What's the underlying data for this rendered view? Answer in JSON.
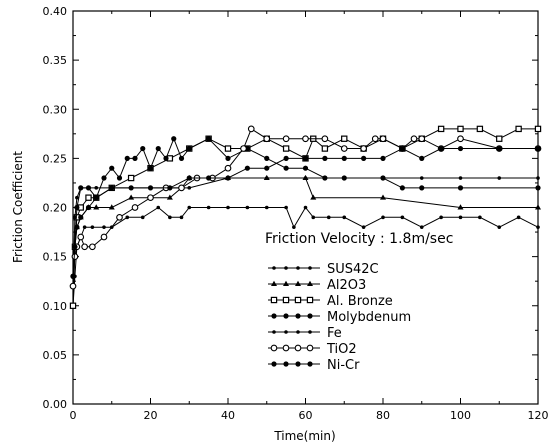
{
  "chart_data": {
    "type": "line",
    "title": "",
    "xlabel": "Time(min)",
    "ylabel": "Friction Coefficient",
    "xlim": [
      0,
      120
    ],
    "ylim": [
      0,
      0.4
    ],
    "x_ticks": [
      "0",
      "20",
      "40",
      "60",
      "80",
      "100",
      "120"
    ],
    "y_ticks": [
      "0.00",
      "0.05",
      "0.10",
      "0.15",
      "0.20",
      "0.25",
      "0.30",
      "0.35",
      "0.40"
    ],
    "grid": false,
    "legend_position": "lower-right",
    "annotation": "Friction Velocity : 1.8m/sec",
    "series": [
      {
        "name": "SUS42C",
        "marker": "small-dot",
        "x": [
          0,
          0.5,
          1,
          2,
          3,
          5,
          8,
          10,
          14,
          18,
          22,
          25,
          28,
          30,
          35,
          40,
          45,
          50,
          55,
          57,
          60,
          62,
          66,
          70,
          75,
          80,
          85,
          90,
          95,
          100,
          105,
          110,
          115,
          120
        ],
        "y": [
          0.1,
          0.13,
          0.16,
          0.17,
          0.18,
          0.18,
          0.18,
          0.18,
          0.19,
          0.19,
          0.2,
          0.19,
          0.19,
          0.2,
          0.2,
          0.2,
          0.2,
          0.2,
          0.2,
          0.18,
          0.2,
          0.19,
          0.19,
          0.19,
          0.18,
          0.19,
          0.19,
          0.18,
          0.19,
          0.19,
          0.19,
          0.18,
          0.19,
          0.18
        ]
      },
      {
        "name": "Al2O3",
        "marker": "triangle",
        "x": [
          0,
          0.5,
          1,
          2,
          4,
          6,
          10,
          15,
          20,
          25,
          28,
          30,
          40,
          50,
          60,
          62,
          80,
          100,
          120
        ],
        "y": [
          0.1,
          0.16,
          0.18,
          0.19,
          0.2,
          0.2,
          0.2,
          0.21,
          0.21,
          0.21,
          0.22,
          0.23,
          0.23,
          0.23,
          0.23,
          0.21,
          0.21,
          0.2,
          0.2
        ]
      },
      {
        "name": "Al. Bronze",
        "marker": "square",
        "x": [
          0,
          0.5,
          1,
          2,
          4,
          6,
          10,
          15,
          20,
          25,
          30,
          35,
          40,
          45,
          50,
          55,
          60,
          62,
          65,
          70,
          75,
          80,
          85,
          90,
          95,
          100,
          105,
          110,
          115,
          120
        ],
        "y": [
          0.1,
          0.16,
          0.19,
          0.2,
          0.21,
          0.21,
          0.22,
          0.23,
          0.24,
          0.25,
          0.26,
          0.27,
          0.26,
          0.26,
          0.27,
          0.26,
          0.25,
          0.27,
          0.26,
          0.27,
          0.26,
          0.27,
          0.26,
          0.27,
          0.28,
          0.28,
          0.28,
          0.27,
          0.28,
          0.28
        ]
      },
      {
        "name": "Molybdenum",
        "marker": "filled-circle",
        "x": [
          0,
          1,
          2,
          4,
          6,
          8,
          10,
          12,
          14,
          16,
          18,
          20,
          22,
          24,
          26,
          28,
          30,
          35,
          40,
          45,
          50,
          55,
          60,
          65,
          70,
          80,
          85,
          90,
          100,
          120
        ],
        "y": [
          0.13,
          0.2,
          0.22,
          0.22,
          0.21,
          0.23,
          0.24,
          0.23,
          0.25,
          0.25,
          0.26,
          0.24,
          0.26,
          0.25,
          0.27,
          0.25,
          0.26,
          0.27,
          0.25,
          0.26,
          0.25,
          0.24,
          0.24,
          0.23,
          0.23,
          0.23,
          0.22,
          0.22,
          0.22,
          0.22
        ]
      },
      {
        "name": "Fe",
        "marker": "small-dot",
        "x": [
          0,
          0.5,
          1,
          2,
          4,
          6,
          10,
          20,
          30,
          40,
          50,
          60,
          70,
          80,
          90,
          100,
          110,
          120
        ],
        "y": [
          0.12,
          0.19,
          0.21,
          0.22,
          0.22,
          0.22,
          0.22,
          0.22,
          0.22,
          0.23,
          0.23,
          0.23,
          0.23,
          0.23,
          0.23,
          0.23,
          0.23,
          0.23
        ]
      },
      {
        "name": "TiO2",
        "marker": "open-circle",
        "x": [
          0,
          0.5,
          1,
          2,
          3,
          5,
          8,
          12,
          16,
          20,
          24,
          28,
          32,
          36,
          40,
          44,
          46,
          50,
          55,
          60,
          65,
          70,
          75,
          78,
          80,
          85,
          88,
          90,
          95,
          100,
          110,
          120
        ],
        "y": [
          0.12,
          0.15,
          0.16,
          0.17,
          0.16,
          0.16,
          0.17,
          0.19,
          0.2,
          0.21,
          0.22,
          0.22,
          0.23,
          0.23,
          0.24,
          0.26,
          0.28,
          0.27,
          0.27,
          0.27,
          0.27,
          0.26,
          0.26,
          0.27,
          0.27,
          0.26,
          0.27,
          0.27,
          0.26,
          0.27,
          0.26,
          0.26
        ]
      },
      {
        "name": "Ni-Cr",
        "marker": "filled-circle",
        "x": [
          0,
          0.5,
          1,
          2,
          4,
          6,
          10,
          15,
          20,
          25,
          30,
          35,
          40,
          45,
          50,
          55,
          60,
          65,
          70,
          75,
          80,
          85,
          90,
          95,
          100,
          110,
          120
        ],
        "y": [
          0.13,
          0.16,
          0.18,
          0.19,
          0.2,
          0.21,
          0.22,
          0.22,
          0.22,
          0.22,
          0.23,
          0.23,
          0.23,
          0.24,
          0.24,
          0.25,
          0.25,
          0.25,
          0.25,
          0.25,
          0.25,
          0.26,
          0.25,
          0.26,
          0.26,
          0.26,
          0.26
        ]
      }
    ]
  }
}
